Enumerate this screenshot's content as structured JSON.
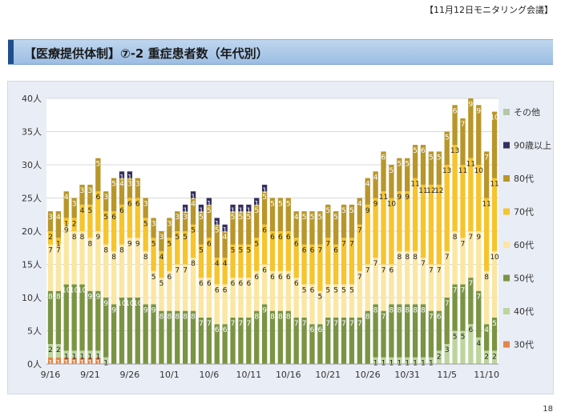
{
  "header": {
    "meeting": "【11月12日モニタリング会議】",
    "title": "【医療提供体制】⑦-2 重症患者数（年代別）"
  },
  "footer": {
    "page_number": "18"
  },
  "colors": {
    "30代": "#e3864a",
    "40代": "#bcd59d",
    "50代": "#7a9443",
    "60代": "#fbe6a2",
    "70代": "#f6c42c",
    "80代": "#b8962a",
    "90歳以上": "#352f5e",
    "その他": "#b5c7a8"
  },
  "chart_data": {
    "type": "bar",
    "stacked": true,
    "y_unit": "人",
    "ylim": [
      0,
      40
    ],
    "yticks": [
      0,
      5,
      10,
      15,
      20,
      25,
      30,
      35,
      40
    ],
    "ytick_labels": [
      "0人",
      "5人",
      "10人",
      "15人",
      "20人",
      "25人",
      "30人",
      "35人",
      "40人"
    ],
    "grid": true,
    "legend_placement": "right",
    "categories": [
      "9/16",
      "9/17",
      "9/18",
      "9/19",
      "9/20",
      "9/21",
      "9/22",
      "9/23",
      "9/24",
      "9/25",
      "9/26",
      "9/27",
      "9/28",
      "9/29",
      "9/30",
      "10/1",
      "10/2",
      "10/3",
      "10/4",
      "10/5",
      "10/6",
      "10/7",
      "10/8",
      "10/9",
      "10/10",
      "10/11",
      "10/12",
      "10/13",
      "10/14",
      "10/15",
      "10/16",
      "10/17",
      "10/18",
      "10/19",
      "10/20",
      "10/21",
      "10/22",
      "10/23",
      "10/24",
      "10/25",
      "10/26",
      "10/27",
      "10/28",
      "10/29",
      "10/30",
      "10/31",
      "11/1",
      "11/2",
      "11/3",
      "11/4",
      "11/5",
      "11/6",
      "11/7",
      "11/8",
      "11/9",
      "11/10",
      "11/11"
    ],
    "x_tick_labels": [
      {
        "index": 0,
        "label": "9/16"
      },
      {
        "index": 5,
        "label": "9/21"
      },
      {
        "index": 10,
        "label": "9/26"
      },
      {
        "index": 15,
        "label": "10/1"
      },
      {
        "index": 20,
        "label": "10/6"
      },
      {
        "index": 25,
        "label": "10/11"
      },
      {
        "index": 30,
        "label": "10/16"
      },
      {
        "index": 35,
        "label": "10/21"
      },
      {
        "index": 40,
        "label": "10/26"
      },
      {
        "index": 45,
        "label": "10/31"
      },
      {
        "index": 50,
        "label": "11/5"
      },
      {
        "index": 55,
        "label": "11/10"
      }
    ],
    "series": [
      {
        "name": "30代",
        "values": [
          1,
          1,
          1,
          1,
          1,
          1,
          1,
          0,
          0,
          0,
          0,
          0,
          0,
          0,
          0,
          0,
          0,
          0,
          0,
          0,
          0,
          0,
          0,
          0,
          0,
          0,
          0,
          0,
          0,
          0,
          0,
          0,
          0,
          0,
          0,
          0,
          0,
          0,
          0,
          0,
          0,
          0,
          0,
          0,
          0,
          0,
          0,
          0,
          0,
          0,
          0,
          0,
          0,
          0,
          0,
          0,
          0
        ]
      },
      {
        "name": "40代",
        "values": [
          2,
          2,
          1,
          1,
          1,
          1,
          1,
          1,
          0,
          0,
          0,
          0,
          0,
          0,
          0,
          0,
          0,
          0,
          0,
          0,
          0,
          0,
          0,
          0,
          0,
          0,
          0,
          0,
          0,
          0,
          0,
          0,
          0,
          0,
          0,
          0,
          0,
          0,
          0,
          0,
          0,
          1,
          1,
          1,
          1,
          1,
          1,
          1,
          1,
          2,
          3,
          5,
          5,
          6,
          4,
          2,
          2
        ]
      },
      {
        "name": "50代",
        "values": [
          8,
          8,
          10,
          10,
          10,
          9,
          9,
          9,
          9,
          10,
          10,
          10,
          9,
          9,
          8,
          8,
          8,
          8,
          8,
          7,
          7,
          6,
          6,
          7,
          7,
          7,
          8,
          9,
          8,
          8,
          8,
          7,
          7,
          6,
          6,
          7,
          7,
          7,
          7,
          7,
          8,
          8,
          7,
          8,
          8,
          8,
          8,
          8,
          7,
          6,
          7,
          7,
          7,
          7,
          7,
          4,
          5
        ]
      },
      {
        "name": "60代",
        "values": [
          7,
          7,
          9,
          8,
          8,
          8,
          9,
          8,
          8,
          8,
          9,
          9,
          8,
          5,
          5,
          6,
          7,
          7,
          8,
          6,
          6,
          6,
          6,
          6,
          6,
          6,
          6,
          6,
          6,
          6,
          6,
          6,
          5,
          6,
          5,
          5,
          5,
          5,
          5,
          7,
          7,
          7,
          7,
          6,
          8,
          8,
          8,
          7,
          7,
          7,
          7,
          8,
          7,
          7,
          9,
          8,
          10
        ]
      },
      {
        "name": "70代",
        "values": [
          2,
          1,
          1,
          2,
          4,
          5,
          6,
          5,
          6,
          6,
          6,
          6,
          5,
          5,
          4,
          5,
          5,
          5,
          5,
          5,
          6,
          4,
          4,
          5,
          5,
          5,
          5,
          6,
          6,
          6,
          6,
          6,
          6,
          6,
          7,
          7,
          6,
          7,
          7,
          7,
          9,
          9,
          11,
          10,
          9,
          9,
          11,
          11,
          12,
          12,
          13,
          13,
          11,
          11,
          10,
          11,
          11
        ]
      },
      {
        "name": "80代",
        "values": [
          3,
          4,
          4,
          3,
          3,
          3,
          5,
          3,
          5,
          4,
          3,
          3,
          3,
          3,
          3,
          3,
          3,
          3,
          4,
          5,
          5,
          5,
          4,
          5,
          5,
          5,
          5,
          5,
          5,
          5,
          5,
          4,
          5,
          5,
          5,
          5,
          5,
          5,
          5,
          4,
          4,
          4,
          6,
          5,
          5,
          5,
          5,
          6,
          5,
          5,
          5,
          6,
          7,
          9,
          9,
          7,
          10
        ]
      },
      {
        "name": "90歳以上",
        "values": [
          0,
          0,
          0,
          0,
          0,
          0,
          0,
          0,
          0,
          1,
          1,
          0,
          0,
          0,
          0,
          0,
          0,
          1,
          1,
          1,
          1,
          1,
          1,
          1,
          1,
          1,
          1,
          1,
          0,
          0,
          0,
          0,
          0,
          0,
          0,
          0,
          0,
          0,
          0,
          0,
          0,
          0,
          0,
          0,
          0,
          0,
          0,
          0,
          0,
          0,
          0,
          0,
          0,
          0,
          0,
          0,
          0
        ]
      },
      {
        "name": "その他",
        "values": [
          0,
          0,
          0,
          0,
          0,
          0,
          0,
          0,
          0,
          0,
          0,
          0,
          0,
          0,
          0,
          0,
          0,
          0,
          0,
          0,
          0,
          0,
          0,
          0,
          0,
          0,
          0,
          0,
          0,
          0,
          0,
          0,
          0,
          0,
          0,
          0,
          0,
          0,
          0,
          0,
          0,
          0,
          0,
          0,
          0,
          0,
          0,
          0,
          0,
          0,
          0,
          0,
          0,
          0,
          0,
          0,
          0
        ]
      }
    ],
    "legend_order": [
      "その他",
      "90歳以上",
      "80代",
      "70代",
      "60代",
      "50代",
      "40代",
      "30代"
    ]
  }
}
